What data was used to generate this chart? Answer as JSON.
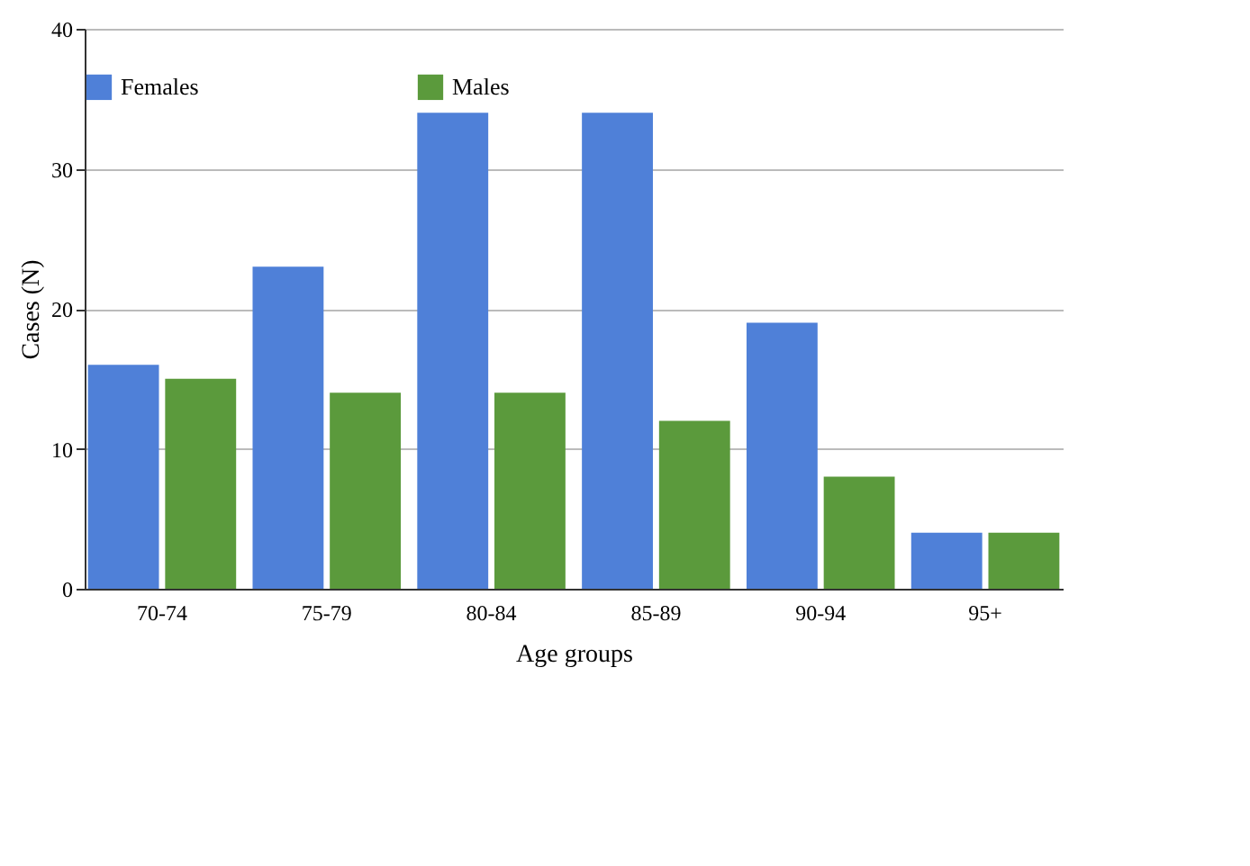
{
  "chart_data": {
    "type": "bar",
    "xlabel": "Age groups",
    "ylabel": "Cases (N)",
    "categories": [
      "70-74",
      "75-79",
      "80-84",
      "85-89",
      "90-94",
      "95+"
    ],
    "series": [
      {
        "name": "Females",
        "color": "#4f80d8",
        "values": [
          16,
          23,
          34,
          34,
          19,
          4
        ]
      },
      {
        "name": "Males",
        "color": "#5b9a3c",
        "values": [
          15,
          14,
          14,
          12,
          8,
          4
        ]
      }
    ],
    "ylim": [
      0,
      40
    ],
    "yticks": [
      0,
      10,
      20,
      30,
      40
    ],
    "grid": "y",
    "legend": "top"
  }
}
